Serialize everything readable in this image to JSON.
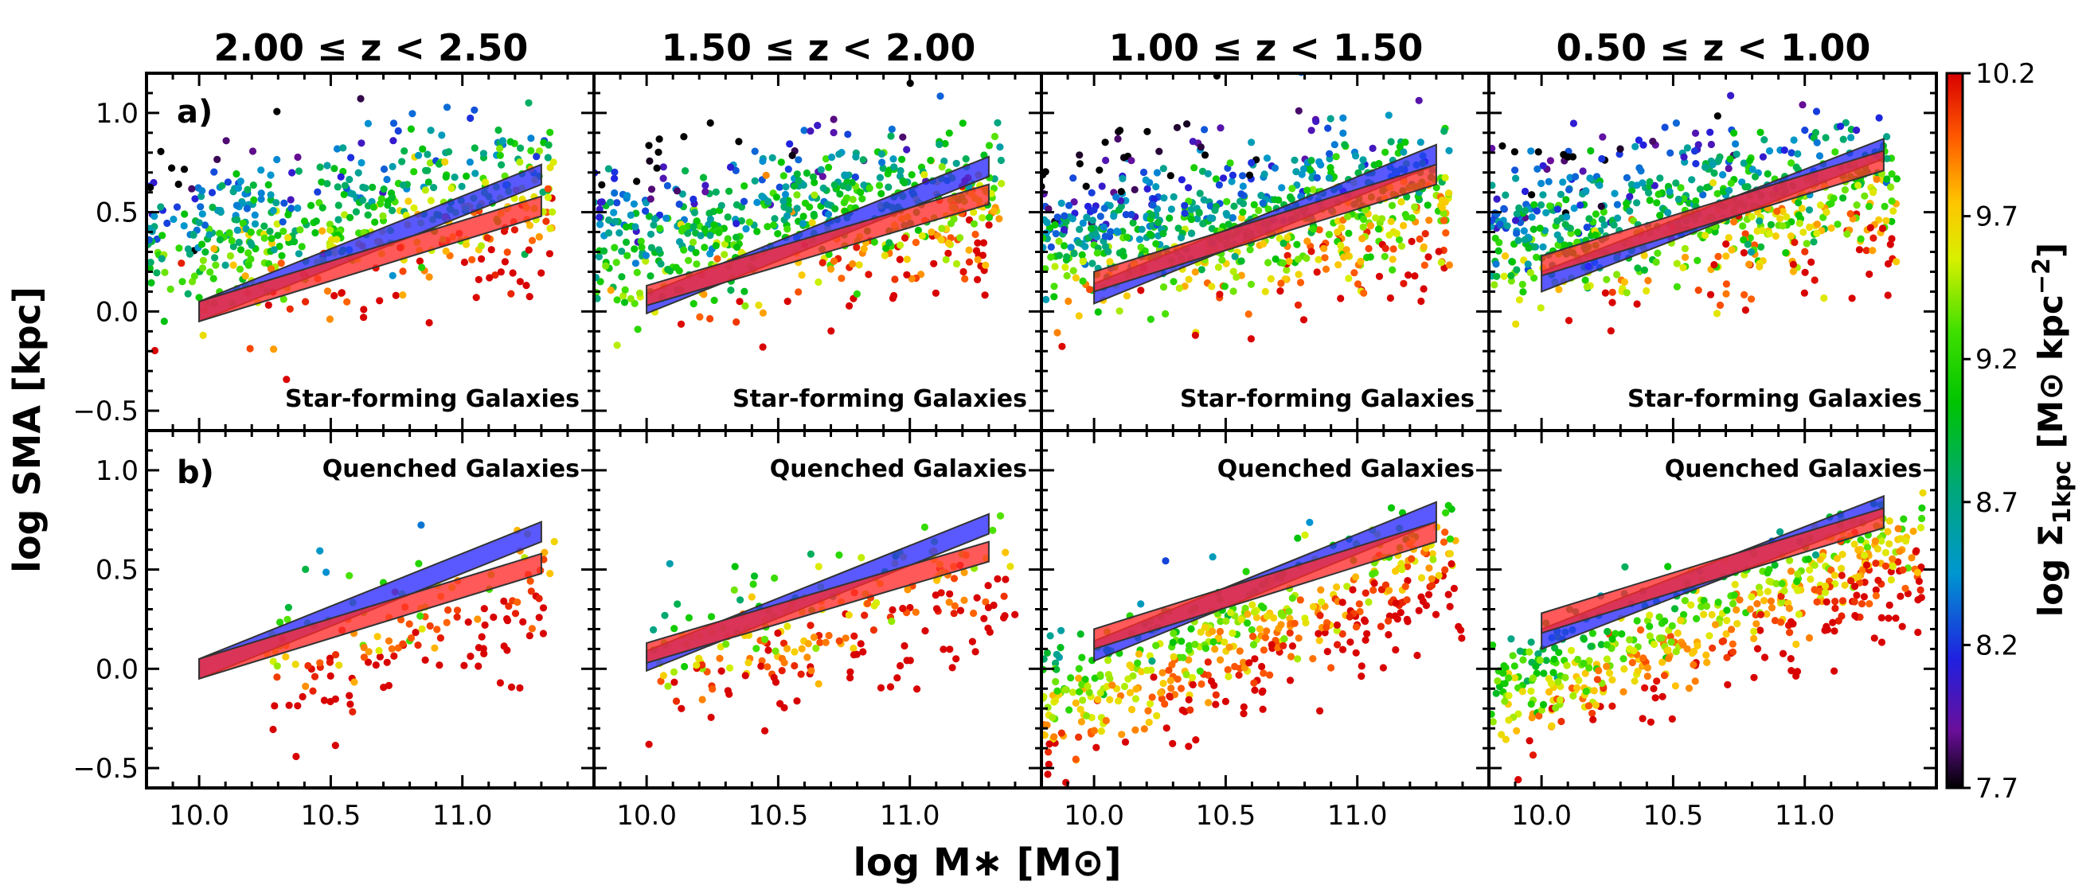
{
  "figure": {
    "xlabel": "log M∗ [M⊙]",
    "ylabel": "log SMA [kpc]",
    "colorbar": {
      "label": "log Σ₁ₖₚᴄ [M⊙ kpc⁻²]",
      "label_parts": [
        "log Σ",
        "1kpc",
        " [M⊙ kpc",
        "−2",
        "]"
      ],
      "range": [
        7.7,
        10.2
      ],
      "ticks": [
        7.7,
        8.2,
        8.7,
        9.2,
        9.7,
        10.2
      ],
      "colormap": "nipy_spectral"
    }
  },
  "chart_data": {
    "type": "scatter",
    "xlim": [
      9.8,
      11.5
    ],
    "ylim": [
      -0.6,
      1.2
    ],
    "xticks": [
      10.0,
      10.5,
      11.0
    ],
    "yticks": [
      -0.5,
      0.0,
      0.5,
      1.0
    ],
    "columns": [
      {
        "title": "2.00 ≤ z < 2.50"
      },
      {
        "title": "1.50 ≤ z < 2.00"
      },
      {
        "title": "1.00 ≤ z < 1.50"
      },
      {
        "title": "0.50 ≤ z < 1.00"
      }
    ],
    "rows": [
      {
        "panel_label": "a)",
        "population_label": "Star-forming Galaxies",
        "label_position": "bottom-right"
      },
      {
        "panel_label": "b)",
        "population_label": "Quenched Galaxies",
        "label_position": "top-right"
      }
    ],
    "band_colors": {
      "blue": "#2a2aff",
      "red": "#ff2a2a"
    },
    "bands": [
      {
        "blue": {
          "x": [
            10.0,
            11.3
          ],
          "y_center": [
            0.0,
            0.69
          ],
          "half_width": 0.05
        },
        "red": {
          "x": [
            10.0,
            11.3
          ],
          "y_center": [
            0.0,
            0.53
          ],
          "half_width": 0.05
        }
      },
      {
        "blue": {
          "x": [
            10.0,
            11.3
          ],
          "y_center": [
            0.04,
            0.73
          ],
          "half_width": 0.05
        },
        "red": {
          "x": [
            10.0,
            11.3
          ],
          "y_center": [
            0.08,
            0.59
          ],
          "half_width": 0.05
        }
      },
      {
        "blue": {
          "x": [
            10.0,
            11.3
          ],
          "y_center": [
            0.09,
            0.79
          ],
          "half_width": 0.05
        },
        "red": {
          "x": [
            10.0,
            11.3
          ],
          "y_center": [
            0.15,
            0.69
          ],
          "half_width": 0.05
        }
      },
      {
        "blue": {
          "x": [
            10.0,
            11.3
          ],
          "y_center": [
            0.15,
            0.82
          ],
          "half_width": 0.05
        },
        "red": {
          "x": [
            10.0,
            11.3
          ],
          "y_center": [
            0.23,
            0.76
          ],
          "half_width": 0.05
        }
      }
    ],
    "scatter_series": [
      [
        {
          "population": "star-forming",
          "n": 560,
          "x_range": [
            9.8,
            11.35
          ],
          "y_intercept": 0.38,
          "slope": 0.15,
          "scatter_y": 0.2,
          "color_center": 9.1,
          "color_sigma": 0.35,
          "color_slope": 0.55
        },
        {
          "population": "quenched",
          "n": 150,
          "x_range": [
            10.25,
            11.35
          ],
          "y_intercept": -0.05,
          "slope": 0.3,
          "scatter_y": 0.2,
          "color_center": 9.9,
          "color_sigma": 0.25,
          "color_slope": 0.4
        }
      ],
      [
        {
          "population": "star-forming",
          "n": 640,
          "x_range": [
            9.8,
            11.35
          ],
          "y_intercept": 0.38,
          "slope": 0.15,
          "scatter_y": 0.2,
          "color_center": 9.05,
          "color_sigma": 0.35,
          "color_slope": 0.55
        },
        {
          "population": "quenched",
          "n": 230,
          "x_range": [
            10.0,
            11.4
          ],
          "y_intercept": -0.05,
          "slope": 0.35,
          "scatter_y": 0.18,
          "color_center": 9.85,
          "color_sigma": 0.25,
          "color_slope": 0.4
        }
      ],
      [
        {
          "population": "star-forming",
          "n": 760,
          "x_range": [
            9.8,
            11.35
          ],
          "y_intercept": 0.37,
          "slope": 0.14,
          "scatter_y": 0.2,
          "color_center": 9.0,
          "color_sigma": 0.35,
          "color_slope": 0.55
        },
        {
          "population": "quenched",
          "n": 500,
          "x_range": [
            9.8,
            11.4
          ],
          "y_intercept": -0.1,
          "slope": 0.45,
          "scatter_y": 0.17,
          "color_center": 9.7,
          "color_sigma": 0.25,
          "color_slope": 0.4
        }
      ],
      [
        {
          "population": "star-forming",
          "n": 700,
          "x_range": [
            9.8,
            11.35
          ],
          "y_intercept": 0.42,
          "slope": 0.13,
          "scatter_y": 0.2,
          "color_center": 9.0,
          "color_sigma": 0.35,
          "color_slope": 0.55
        },
        {
          "population": "quenched",
          "n": 560,
          "x_range": [
            9.8,
            11.45
          ],
          "y_intercept": -0.05,
          "slope": 0.45,
          "scatter_y": 0.15,
          "color_center": 9.55,
          "color_sigma": 0.25,
          "color_slope": 0.4
        }
      ]
    ]
  }
}
